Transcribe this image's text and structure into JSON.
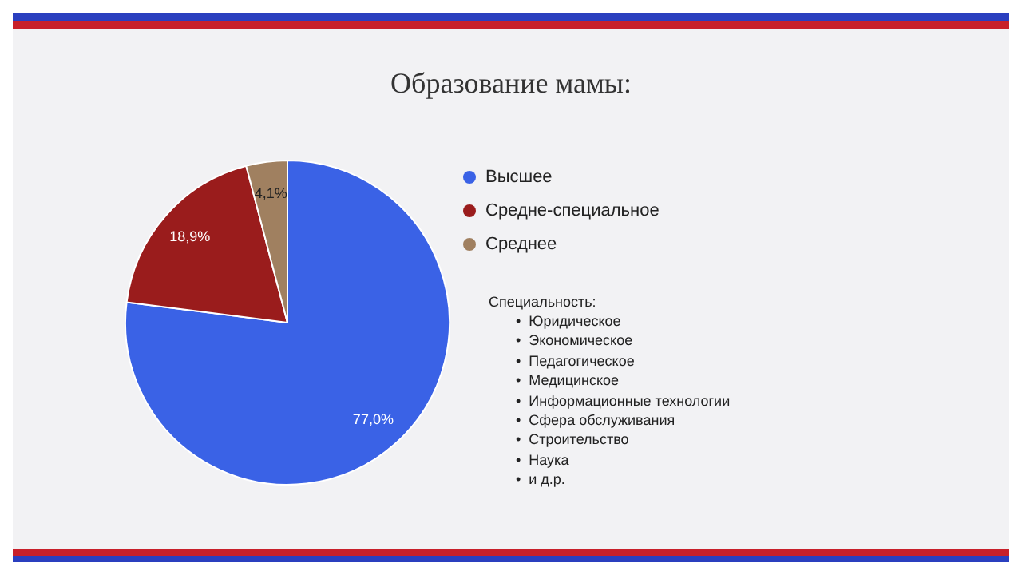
{
  "chart_data": {
    "type": "pie",
    "title": "Образование мамы:",
    "categories": [
      "Высшее",
      "Средне-специальное",
      "Среднее"
    ],
    "values": [
      77.0,
      18.9,
      4.1
    ],
    "value_labels": [
      "77,0%",
      "18,9%",
      "4,1%"
    ],
    "colors": [
      "#3a62e6",
      "#9a1c1c",
      "#a08060"
    ],
    "legend": "right",
    "annotations": [
      "Специальность:",
      "•  Юридическое",
      "•  Экономическое",
      "•  Педагогическое",
      "•  Медицинское",
      "•  Информационные технологии",
      "•  Сфера обслуживания",
      "•  Строительство",
      "•  Наука",
      "•  и д.р."
    ]
  }
}
